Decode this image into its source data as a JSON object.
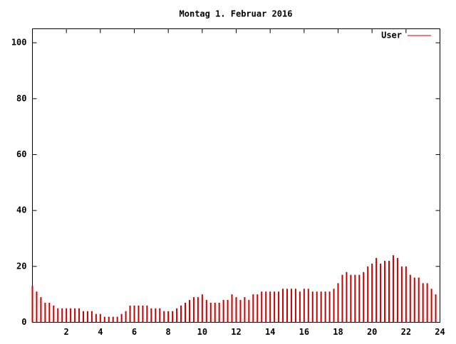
{
  "chart_data": {
    "type": "impulses",
    "title": "Montag 1. Februar 2016",
    "x": [
      0,
      0.25,
      0.5,
      0.75,
      1,
      1.25,
      1.5,
      1.75,
      2,
      2.25,
      2.5,
      2.75,
      3,
      3.25,
      3.5,
      3.75,
      4,
      4.25,
      4.5,
      4.75,
      5,
      5.25,
      5.5,
      5.75,
      6,
      6.25,
      6.5,
      6.75,
      7,
      7.25,
      7.5,
      7.75,
      8,
      8.25,
      8.5,
      8.75,
      9,
      9.25,
      9.5,
      9.75,
      10,
      10.25,
      10.5,
      10.75,
      11,
      11.25,
      11.5,
      11.75,
      12,
      12.25,
      12.5,
      12.75,
      13,
      13.25,
      13.5,
      13.75,
      14,
      14.25,
      14.5,
      14.75,
      15,
      15.25,
      15.5,
      15.75,
      16,
      16.25,
      16.5,
      16.75,
      17,
      17.25,
      17.5,
      17.75,
      18,
      18.25,
      18.5,
      18.75,
      19,
      19.25,
      19.5,
      19.75,
      20,
      20.25,
      20.5,
      20.75,
      21,
      21.25,
      21.5,
      21.75,
      22,
      22.25,
      22.5,
      22.75,
      23,
      23.25,
      23.5,
      23.75
    ],
    "series": [
      {
        "name": "User",
        "color": "#cc0000",
        "values": [
          13,
          11,
          9,
          7,
          7,
          6,
          5,
          5,
          5,
          5,
          5,
          5,
          4,
          4,
          4,
          3,
          3,
          2,
          2,
          2,
          2,
          3,
          4,
          6,
          6,
          6,
          6,
          6,
          5,
          5,
          5,
          4,
          4,
          4,
          5,
          6,
          7,
          8,
          9,
          9,
          10,
          8,
          7,
          7,
          7,
          8,
          8,
          10,
          9,
          8,
          9,
          8,
          10,
          10,
          11,
          11,
          11,
          11,
          11,
          12,
          12,
          12,
          12,
          11,
          12,
          12,
          11,
          11,
          11,
          11,
          11,
          12,
          14,
          17,
          18,
          17,
          17,
          17,
          18,
          20,
          21,
          23,
          21,
          22,
          22,
          24,
          23,
          20,
          20,
          17,
          16,
          16,
          14,
          14,
          12,
          10
        ]
      }
    ],
    "xlim": [
      0,
      24
    ],
    "xticks": [
      2,
      4,
      6,
      8,
      10,
      12,
      14,
      16,
      18,
      20,
      22,
      24
    ],
    "ylim": [
      0,
      105
    ],
    "yticks": [
      0,
      20,
      40,
      60,
      80,
      100
    ],
    "legend_position": "top-right"
  }
}
